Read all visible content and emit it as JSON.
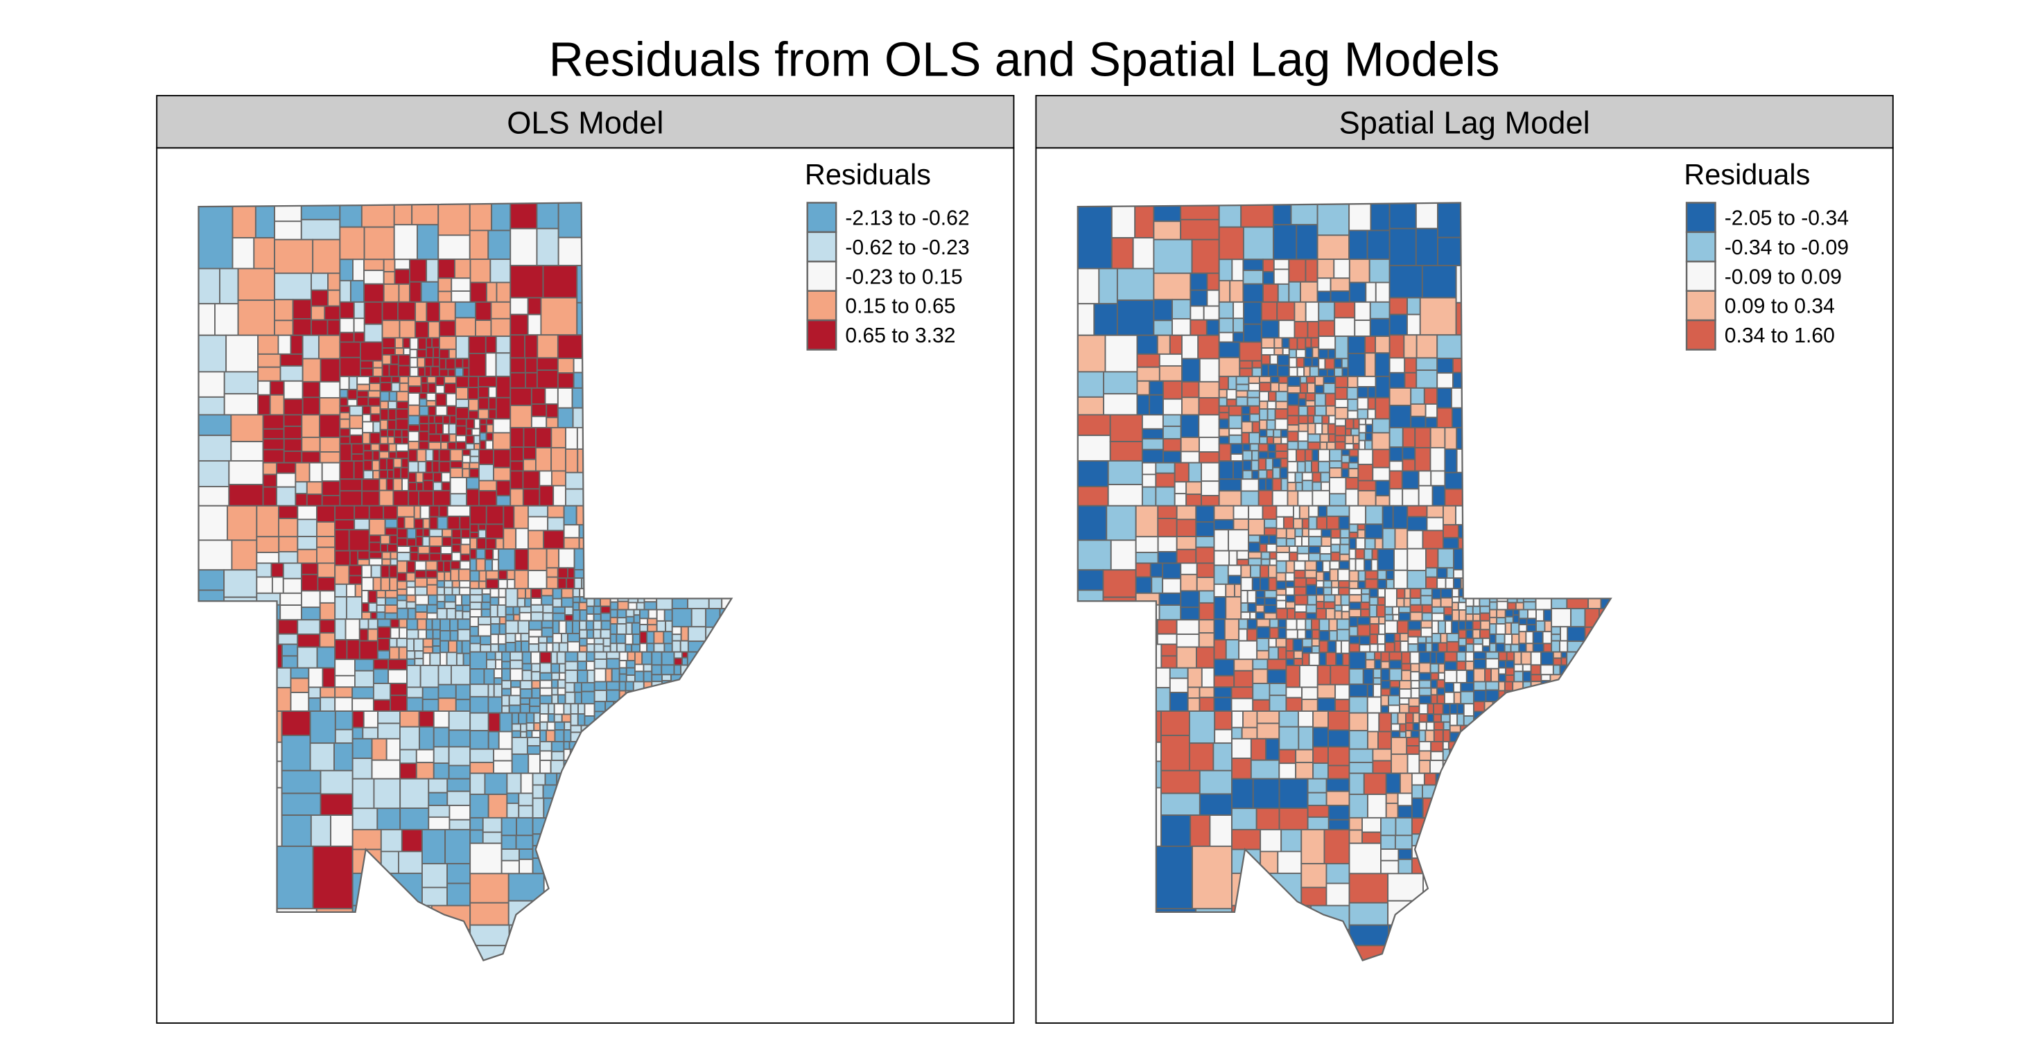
{
  "chart_data": {
    "type": "choropleth",
    "title": "Residuals from OLS and Spatial Lag Models",
    "panels": [
      {
        "strip_label": "OLS Model",
        "legend_title": "Residuals",
        "legend_position": "top-right",
        "classes": [
          {
            "label": "-2.13 to -0.62",
            "min": -2.13,
            "max": -0.62,
            "color": "#67a9cf"
          },
          {
            "label": "-0.62 to -0.23",
            "min": -0.62,
            "max": -0.23,
            "color": "#c3deeb"
          },
          {
            "label": "-0.23 to 0.15",
            "min": -0.23,
            "max": 0.15,
            "color": "#f7f7f7"
          },
          {
            "label": "0.15 to 0.65",
            "min": 0.15,
            "max": 0.65,
            "color": "#f4a582"
          },
          {
            "label": "0.65 to 3.32",
            "min": 0.65,
            "max": 3.32,
            "color": "#b2182b"
          }
        ]
      },
      {
        "strip_label": "Spatial Lag Model",
        "legend_title": "Residuals",
        "legend_position": "top-right",
        "classes": [
          {
            "label": "-2.05 to -0.34",
            "min": -2.05,
            "max": -0.34,
            "color": "#2166ac"
          },
          {
            "label": "-0.34 to -0.09",
            "min": -0.34,
            "max": -0.09,
            "color": "#92c5de"
          },
          {
            "label": "-0.09 to 0.09",
            "min": -0.09,
            "max": 0.09,
            "color": "#f7f7f7"
          },
          {
            "label": "0.09 to 0.34",
            "min": 0.09,
            "max": 0.34,
            "color": "#f5b99c"
          },
          {
            "label": "0.34 to 1.60",
            "min": 0.34,
            "max": 1.6,
            "color": "#d6604d"
          }
        ]
      }
    ],
    "border_color": "#666666",
    "strip_color": "#cccccc"
  }
}
